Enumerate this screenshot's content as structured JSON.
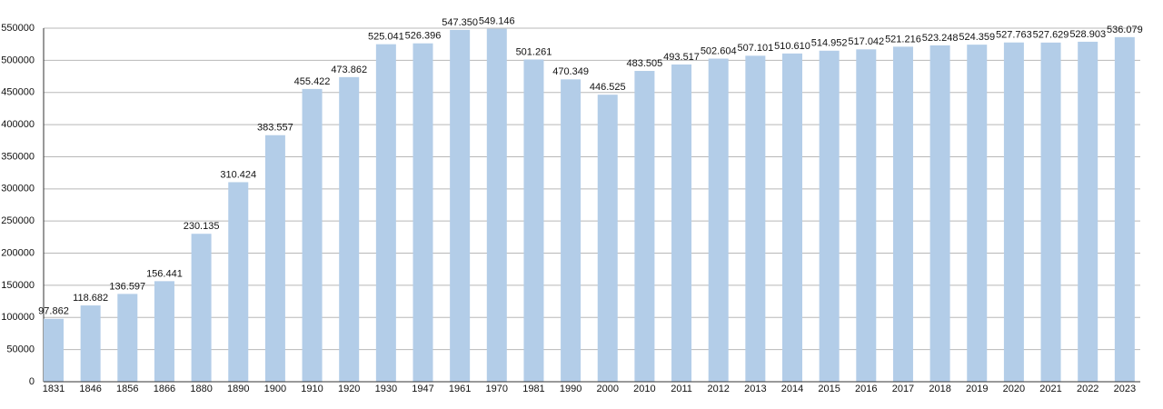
{
  "chart_data": {
    "type": "bar",
    "categories": [
      "1831",
      "1846",
      "1856",
      "1866",
      "1880",
      "1890",
      "1900",
      "1910",
      "1920",
      "1930",
      "1947",
      "1961",
      "1970",
      "1981",
      "1990",
      "2000",
      "2010",
      "2011",
      "2012",
      "2013",
      "2014",
      "2015",
      "2016",
      "2017",
      "2018",
      "2019",
      "2020",
      "2021",
      "2022",
      "2023"
    ],
    "values": [
      97862,
      118682,
      136597,
      156441,
      230135,
      310424,
      383557,
      455422,
      473862,
      525041,
      526396,
      547350,
      549146,
      501261,
      470349,
      446525,
      483505,
      493517,
      502604,
      507101,
      510610,
      514952,
      517042,
      521216,
      523248,
      524359,
      527763,
      527629,
      528903,
      536079
    ],
    "value_labels": [
      "97.862",
      "118.682",
      "136.597",
      "156.441",
      "230.135",
      "310.424",
      "383.557",
      "455.422",
      "473.862",
      "525.041",
      "526.396",
      "547.350",
      "549.146",
      "501.261",
      "470.349",
      "446.525",
      "483.505",
      "493.517",
      "502.604",
      "507.101",
      "510.610",
      "514.952",
      "517.042",
      "521.216",
      "523.248",
      "524.359",
      "527.763",
      "527.629",
      "528.903",
      "536.079"
    ],
    "color": "#b3cde8",
    "ylim": [
      0,
      550000
    ],
    "yticks": [
      0,
      50000,
      100000,
      150000,
      200000,
      250000,
      300000,
      350000,
      400000,
      450000,
      500000,
      550000
    ],
    "grid": true
  }
}
